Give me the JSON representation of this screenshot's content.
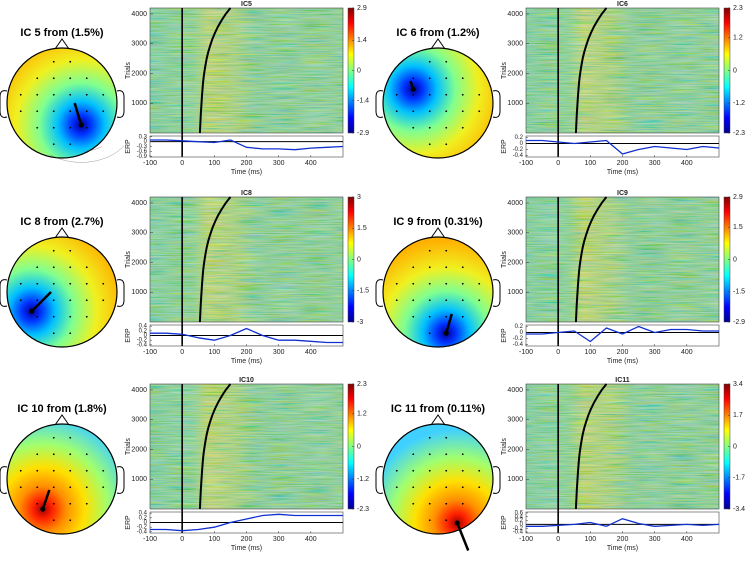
{
  "panels": [
    {
      "topo_title": "IC 5 from  (1.5%)",
      "image_title": "IC5",
      "trials_label": "Trials",
      "erp_label": "ERP",
      "xlabel": "Time (ms)",
      "xlim": [
        -100,
        500
      ],
      "xticks": [
        -100,
        0,
        100,
        200,
        300,
        400
      ],
      "ylim": [
        0,
        4200
      ],
      "yticks": [
        1000,
        2000,
        3000,
        4000
      ],
      "clim": [
        -2.9,
        2.9
      ],
      "cticks": [
        2.9,
        1.4,
        0,
        -1.4,
        -2.9
      ],
      "erp_ylim": [
        -0.95,
        0.35
      ],
      "erp_yticks": [
        0.3,
        0,
        -0.3,
        -0.6,
        -0.9
      ],
      "erp_x": [
        -100,
        -50,
        0,
        50,
        100,
        150,
        200,
        250,
        300,
        350,
        400,
        450,
        500
      ],
      "erp_values": [
        0.1,
        0.1,
        0.05,
        0.0,
        -0.05,
        0.1,
        -0.35,
        -0.45,
        -0.45,
        -0.5,
        -0.4,
        -0.35,
        -0.3
      ]
    },
    {
      "topo_title": "IC 6 from  (1.2%)",
      "image_title": "IC6",
      "trials_label": "Trials",
      "erp_label": "ERP",
      "xlabel": "Time (ms)",
      "xlim": [
        -100,
        500
      ],
      "xticks": [
        -100,
        0,
        100,
        200,
        300,
        400
      ],
      "ylim": [
        0,
        4200
      ],
      "yticks": [
        1000,
        2000,
        3000,
        4000
      ],
      "clim": [
        -2.3,
        2.3
      ],
      "cticks": [
        2.3,
        1.2,
        0,
        -1.2,
        -2.3
      ],
      "erp_ylim": [
        -0.45,
        0.25
      ],
      "erp_yticks": [
        0.2,
        0,
        -0.2,
        -0.4
      ],
      "erp_x": [
        -100,
        -50,
        0,
        50,
        100,
        150,
        200,
        250,
        300,
        350,
        400,
        450,
        500
      ],
      "erp_values": [
        0.1,
        0.1,
        0.05,
        0.0,
        0.05,
        0.1,
        -0.35,
        -0.2,
        -0.1,
        -0.15,
        -0.2,
        -0.1,
        -0.15
      ]
    },
    {
      "topo_title": "IC 8 from  (2.7%)",
      "image_title": "IC8",
      "trials_label": "Trials",
      "erp_label": "ERP",
      "xlabel": "Time (ms)",
      "xlim": [
        -100,
        500
      ],
      "xticks": [
        -100,
        0,
        100,
        200,
        300,
        400
      ],
      "ylim": [
        0,
        4200
      ],
      "yticks": [
        1000,
        2000,
        3000,
        4000
      ],
      "clim": [
        -3,
        3
      ],
      "cticks": [
        3,
        1.5,
        0,
        -1.5,
        -3
      ],
      "erp_ylim": [
        -0.45,
        0.45
      ],
      "erp_yticks": [
        0.4,
        0.2,
        0,
        -0.2,
        -0.4
      ],
      "erp_x": [
        -100,
        -50,
        0,
        50,
        100,
        150,
        200,
        250,
        300,
        350,
        400,
        450,
        500
      ],
      "erp_values": [
        0.1,
        0.1,
        0.05,
        -0.1,
        -0.2,
        0.0,
        0.3,
        0.0,
        -0.2,
        -0.2,
        -0.25,
        -0.3,
        -0.3
      ]
    },
    {
      "topo_title": "IC 9 from  (0.31%)",
      "image_title": "IC9",
      "trials_label": "Trials",
      "erp_label": "ERP",
      "xlabel": "Time (ms)",
      "xlim": [
        -100,
        500
      ],
      "xticks": [
        -100,
        0,
        100,
        200,
        300,
        400
      ],
      "ylim": [
        0,
        4200
      ],
      "yticks": [
        1000,
        2000,
        3000,
        4000
      ],
      "clim": [
        -2.9,
        2.9
      ],
      "cticks": [
        2.9,
        1.5,
        0,
        -1.5,
        -2.9
      ],
      "erp_ylim": [
        -0.45,
        0.25
      ],
      "erp_yticks": [
        0.2,
        0,
        -0.2,
        -0.4
      ],
      "erp_x": [
        -100,
        -50,
        0,
        50,
        100,
        150,
        200,
        250,
        300,
        350,
        400,
        450,
        500
      ],
      "erp_values": [
        -0.05,
        -0.05,
        0.0,
        0.05,
        -0.3,
        0.15,
        -0.05,
        0.2,
        0.0,
        0.1,
        0.1,
        0.05,
        0.05
      ]
    },
    {
      "topo_title": "IC 10 from  (1.8%)",
      "image_title": "IC10",
      "trials_label": "Trials",
      "erp_label": "ERP",
      "xlabel": "Time (ms)",
      "xlim": [
        -100,
        500
      ],
      "xticks": [
        -100,
        0,
        100,
        200,
        300,
        400
      ],
      "ylim": [
        0,
        4200
      ],
      "yticks": [
        1000,
        2000,
        3000,
        4000
      ],
      "clim": [
        -2.3,
        2.3
      ],
      "cticks": [
        2.3,
        1.2,
        0,
        -1.2,
        -2.3
      ],
      "erp_ylim": [
        -0.45,
        0.45
      ],
      "erp_yticks": [
        0.4,
        0.2,
        0,
        -0.2,
        -0.4
      ],
      "erp_x": [
        -100,
        -50,
        0,
        50,
        100,
        150,
        200,
        250,
        300,
        350,
        400,
        450,
        500
      ],
      "erp_values": [
        -0.3,
        -0.3,
        -0.35,
        -0.3,
        -0.2,
        0.0,
        0.15,
        0.3,
        0.35,
        0.3,
        0.3,
        0.3,
        0.3
      ]
    },
    {
      "topo_title": "IC 11 from  (0.11%)",
      "image_title": "IC11",
      "trials_label": "Trials",
      "erp_label": "ERP",
      "xlabel": "Time (ms)",
      "xlim": [
        -100,
        500
      ],
      "xticks": [
        -100,
        0,
        100,
        200,
        300,
        400
      ],
      "ylim": [
        0,
        4200
      ],
      "yticks": [
        1000,
        2000,
        3000,
        4000
      ],
      "clim": [
        -3.4,
        3.4
      ],
      "cticks": [
        3.4,
        1.7,
        0,
        -1.7,
        -3.4
      ],
      "erp_ylim": [
        -0.45,
        0.65
      ],
      "erp_yticks": [
        0.6,
        0.4,
        0.2,
        0,
        -0.2,
        -0.4
      ],
      "erp_x": [
        -100,
        -50,
        0,
        50,
        100,
        150,
        200,
        250,
        300,
        350,
        400,
        450,
        500
      ],
      "erp_values": [
        -0.1,
        -0.1,
        -0.05,
        0.0,
        0.1,
        -0.1,
        0.3,
        0.05,
        -0.1,
        -0.05,
        0.0,
        -0.05,
        0.0
      ]
    }
  ]
}
